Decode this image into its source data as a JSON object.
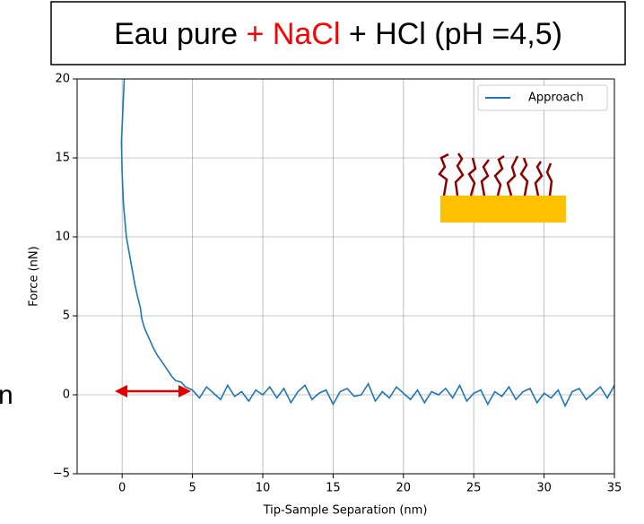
{
  "chart_data": {
    "type": "line",
    "title": [
      "Eau pure ",
      "+ NaCl",
      " + HCl (pH =4,5)"
    ],
    "annotation": "n",
    "x_label": "Tip-Sample Separation (nm)",
    "y_label": "Force (nN)",
    "xlim": [
      -3.2,
      35
    ],
    "ylim": [
      -5,
      20
    ],
    "xticks": [
      0,
      5,
      10,
      15,
      20,
      25,
      30,
      35
    ],
    "yticks": [
      {
        "value": -5,
        "label": "−5"
      },
      0,
      5,
      10,
      15,
      20
    ],
    "grid": true,
    "legend": "upper right",
    "x": [
      0.15,
      0.05,
      -0.05,
      0.0,
      0.1,
      0.3,
      0.5,
      0.7,
      0.9,
      1.1,
      1.3,
      1.4,
      1.6,
      1.9,
      2.2,
      2.5,
      2.9,
      3.2,
      3.5,
      3.8,
      4.2,
      4.5,
      5,
      5.5,
      6,
      6.5,
      7,
      7.5,
      8,
      8.5,
      9,
      9.5,
      10,
      10.5,
      11,
      11.5,
      12,
      12.5,
      13,
      13.5,
      14,
      14.5,
      15,
      15.5,
      16,
      16.5,
      17,
      17.5,
      18,
      18.5,
      19,
      19.5,
      20,
      20.5,
      21,
      21.5,
      22,
      22.5,
      23,
      23.5,
      24,
      24.5,
      25,
      25.5,
      26,
      26.5,
      27,
      27.5,
      28,
      28.5,
      29,
      29.5,
      30,
      30.5,
      31,
      31.5,
      32,
      32.5,
      33,
      33.5,
      34,
      34.5,
      35
    ],
    "series": [
      {
        "name": "Approach",
        "color": "#1f77b4",
        "values": [
          20,
          18,
          16,
          14,
          12,
          10,
          9,
          8,
          7,
          6.2,
          5.5,
          4.8,
          4.2,
          3.6,
          3,
          2.5,
          2,
          1.6,
          1.2,
          0.9,
          0.8,
          0.5,
          0.3,
          -0.2,
          0.5,
          0.1,
          -0.3,
          0.6,
          -0.1,
          0.2,
          -0.4,
          0.3,
          0.0,
          0.5,
          -0.2,
          0.4,
          -0.5,
          0.2,
          0.6,
          -0.3,
          0.1,
          0.3,
          -0.6,
          0.2,
          0.4,
          -0.1,
          0.0,
          0.7,
          -0.4,
          0.2,
          -0.2,
          0.5,
          0.1,
          -0.3,
          0.3,
          -0.5,
          0.2,
          0.0,
          0.4,
          -0.2,
          0.6,
          -0.4,
          0.1,
          0.3,
          -0.6,
          0.2,
          -0.1,
          0.5,
          -0.3,
          0.2,
          0.4,
          -0.5,
          0.1,
          -0.2,
          0.3,
          -0.7,
          0.2,
          0.4,
          -0.3,
          0.1,
          0.5,
          -0.2,
          0.6
        ]
      }
    ]
  }
}
